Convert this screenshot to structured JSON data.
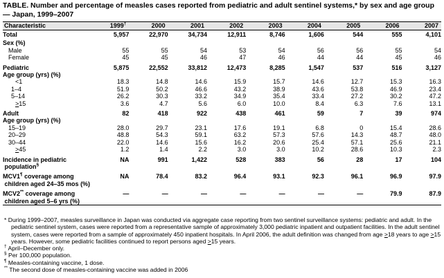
{
  "title": "TABLE. Number and percentage of measles cases reported from pediatric and adult sentinel systems,* by sex and age group — Japan, 1999–2007",
  "header": {
    "characteristic": "Characteristic",
    "years": [
      "1999",
      "2000",
      "2001",
      "2002",
      "2003",
      "2004",
      "2005",
      "2006",
      "2007"
    ],
    "first_year_mark": "†"
  },
  "rows": {
    "total": {
      "label": "Total",
      "values": [
        "5,957",
        "22,970",
        "34,734",
        "12,911",
        "8,746",
        "1,606",
        "544",
        "555",
        "4,101"
      ]
    },
    "sex_heading": "Sex (%)",
    "male": {
      "label": "Male",
      "values": [
        "55",
        "55",
        "54",
        "53",
        "54",
        "56",
        "56",
        "55",
        "54"
      ]
    },
    "female": {
      "label": "Female",
      "values": [
        "45",
        "45",
        "46",
        "47",
        "46",
        "44",
        "44",
        "45",
        "46"
      ]
    },
    "pediatric": {
      "label": "Pediatric",
      "values": [
        "5,875",
        "22,552",
        "33,812",
        "12,473",
        "8,285",
        "1,547",
        "537",
        "516",
        "3,127"
      ]
    },
    "age_heading_1": "Age group (yrs) (%)",
    "ped_lt1": {
      "label": "<1",
      "values": [
        "18.3",
        "14.8",
        "14.6",
        "15.9",
        "15.7",
        "14.6",
        "12.7",
        "15.3",
        "16.3"
      ]
    },
    "ped_1_4": {
      "label": "1–4",
      "values": [
        "51.9",
        "50.2",
        "46.6",
        "43.2",
        "38.9",
        "43.6",
        "53.8",
        "46.9",
        "23.4"
      ]
    },
    "ped_5_14": {
      "label": "5–14",
      "values": [
        "26.2",
        "30.3",
        "33.2",
        "34.9",
        "35.4",
        "33.4",
        "27.2",
        "30.2",
        "47.2"
      ]
    },
    "ped_ge15": {
      "label": "15",
      "prefix": ">",
      "values": [
        "3.6",
        "4.7",
        "5.6",
        "6.0",
        "10.0",
        "8.4",
        "6.3",
        "7.6",
        "13.1"
      ]
    },
    "adult": {
      "label": "Adult",
      "values": [
        "82",
        "418",
        "922",
        "438",
        "461",
        "59",
        "7",
        "39",
        "974"
      ]
    },
    "age_heading_2": "Age group (yrs) (%)",
    "ad_15_19": {
      "label": "15–19",
      "values": [
        "28.0",
        "29.7",
        "23.1",
        "17.6",
        "19.1",
        "6.8",
        "0",
        "15.4",
        "28.6"
      ]
    },
    "ad_20_29": {
      "label": "20–29",
      "values": [
        "48.8",
        "54.3",
        "59.1",
        "63.2",
        "57.3",
        "57.6",
        "14.3",
        "48.7",
        "48.0"
      ]
    },
    "ad_30_44": {
      "label": "30–44",
      "values": [
        "22.0",
        "14.6",
        "15.6",
        "16.2",
        "20.6",
        "25.4",
        "57.1",
        "25.6",
        "21.1"
      ]
    },
    "ad_ge45": {
      "label": "45",
      "prefix": ">",
      "values": [
        "1.2",
        "1.4",
        "2.2",
        "3.0",
        "3.0",
        "10.2",
        "28.6",
        "10.3",
        "2.3"
      ]
    },
    "incidence": {
      "label_line1": "Incidence in pediatric",
      "label_line2": "population",
      "mark": "§",
      "values": [
        "NA",
        "991",
        "1,422",
        "528",
        "383",
        "56",
        "28",
        "17",
        "104"
      ]
    },
    "mcv1": {
      "label_a": "MCV1",
      "mark": "¶",
      "label_b": " coverage among",
      "label_line2": "children aged 24–35 mos (%)",
      "values": [
        "NA",
        "78.4",
        "83.2",
        "96.4",
        "93.1",
        "92.3",
        "96.1",
        "96.9",
        "97.9"
      ]
    },
    "mcv2": {
      "label_a": "MCV2",
      "mark": "**",
      "label_b": " coverage among",
      "label_line2": "children aged 5–6 yrs (%)",
      "values": [
        "—",
        "—",
        "—",
        "—",
        "—",
        "—",
        "—",
        "79.9",
        "87.9"
      ]
    }
  },
  "footnotes": {
    "star_mark": "*",
    "star_a": "During 1999–2007, measles surveillance in Japan was conducted via aggregate case reporting from two sentinel surveillance systems: pediatric and adult. In the pediatric sentinel system, cases were reported from a representative sample of approximately 3,000 pediatric inpatient and outpatient facilities. In the adult sentinel system, cases were reported from a sample of approximately 450 inpatient hospitals. In April 2006, the adult definition was changed from age ",
    "star_ge1": ">",
    "star_b": "18 years to age ",
    "star_ge2": ">",
    "star_c": "15 years. However, some pediatric facilities continued to report persons aged ",
    "star_ge3": ">",
    "star_d": "15 years.",
    "dagger_mark": "†",
    "dagger": "April–December only.",
    "section_mark": "§",
    "section": "Per 100,000 population.",
    "para_mark": "¶",
    "para": "Measles-containing vaccine, 1 dose.",
    "dstar_mark": "**",
    "dstar": "The second dose of measles-containing vaccine was added in 2006"
  }
}
